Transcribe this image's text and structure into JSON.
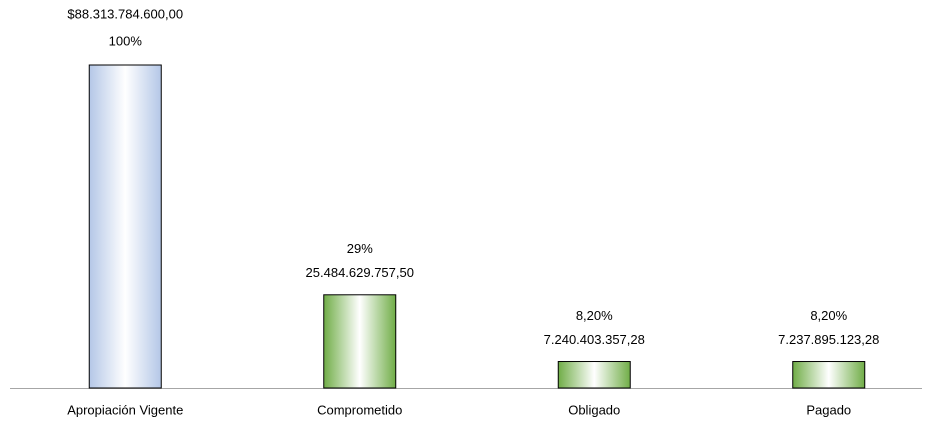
{
  "chart_data": {
    "type": "bar",
    "categories": [
      "Apropiación Vigente",
      "Comprometido",
      "Obligado",
      "Pagado"
    ],
    "values": [
      88313784600,
      25484629757.5,
      7240403357.28,
      7237895123.28
    ],
    "value_labels": [
      "$88.313.784.600,00",
      "25.484.629.757,50",
      "7.240.403.357,28",
      "7.237.895.123,28"
    ],
    "percent_labels": [
      "100%",
      "29%",
      "8,20%",
      "8,20%"
    ],
    "colors": [
      "#b4c7e7",
      "#70ad47",
      "#70ad47",
      "#70ad47"
    ]
  }
}
